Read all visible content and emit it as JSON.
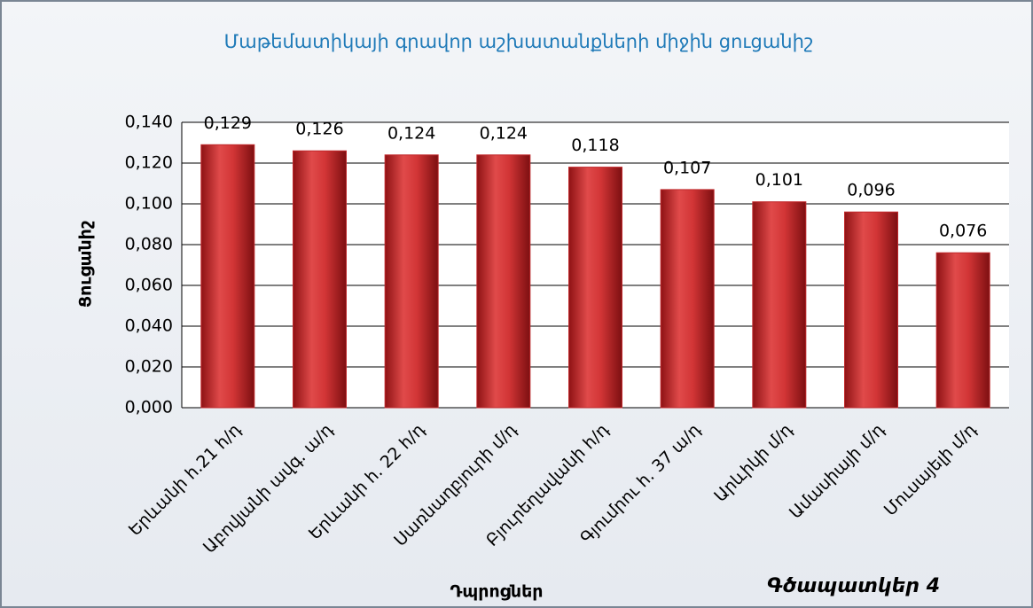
{
  "chart_data": {
    "type": "bar",
    "title": "Մաթեմատիկայի գրավոր աշխատանքների միջին ցուցանիշ",
    "y_label": "Ցուցանիշ",
    "x_label": "Դպրոցներ",
    "annotation": "Գծապատկեր 4",
    "categories": [
      "Երևանի հ.21 հ/դ",
      "Աբովյանի ավգ. ա/դ",
      "Երևանի հ. 22 հ/դ",
      "Սառնաղբյուրի մ/դ",
      "Բյուրեղավանի հ/դ",
      "Գյումրու հ. 37 ա/դ",
      "Արևիկի մ/դ",
      "Ամասիայի մ/դ",
      "Մուսայելի մ/դ"
    ],
    "values": [
      0.129,
      0.126,
      0.124,
      0.124,
      0.118,
      0.107,
      0.101,
      0.096,
      0.076
    ],
    "value_labels": [
      "0,129",
      "0,126",
      "0,124",
      "0,124",
      "0,118",
      "0,107",
      "0,101",
      "0,096",
      "0,076"
    ],
    "color": "#c0282b",
    "ylim": [
      0,
      0.14
    ],
    "yticks": [
      {
        "value": 0,
        "label": "0,000"
      },
      {
        "value": 0.02,
        "label": "0,020"
      },
      {
        "value": 0.04,
        "label": "0,040"
      },
      {
        "value": 0.06,
        "label": "0,060"
      },
      {
        "value": 0.08,
        "label": "0,080"
      },
      {
        "value": 0.1,
        "label": "0,100"
      },
      {
        "value": 0.12,
        "label": "0,120"
      },
      {
        "value": 0.14,
        "label": "0,140"
      }
    ],
    "grid": true
  }
}
